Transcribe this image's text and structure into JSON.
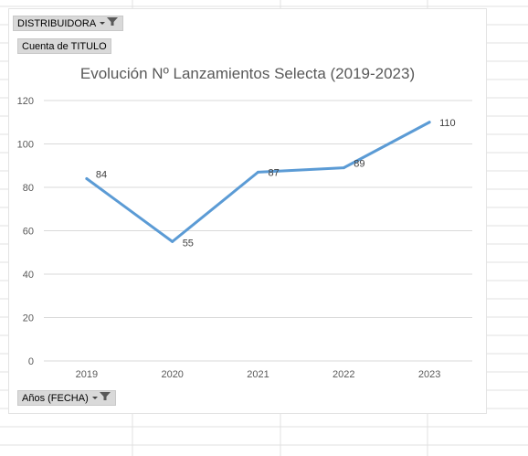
{
  "pivot": {
    "filter_field": "DISTRIBUIDORA",
    "value_field": "Cuenta de TITULO",
    "axis_field": "Años (FECHA)"
  },
  "colors": {
    "line": "#5b9bd5",
    "gridline": "#d9d9d9",
    "axis_text": "#595959",
    "field_button_bg": "#d9d9d9"
  },
  "icons": {
    "filter": "funnel-filter-icon",
    "dropdown": "dropdown-arrow-icon"
  },
  "chart_data": {
    "type": "line",
    "title": "Evolución Nº Lanzamientos Selecta (2019-2023)",
    "categories": [
      "2019",
      "2020",
      "2021",
      "2022",
      "2023"
    ],
    "series": [
      {
        "values": [
          84,
          55,
          87,
          89,
          110
        ]
      }
    ],
    "data_labels": [
      "84",
      "55",
      "87",
      "89",
      "110"
    ],
    "ylim": [
      0,
      120
    ],
    "yticks": [
      0,
      20,
      40,
      60,
      80,
      100,
      120
    ],
    "grid": true,
    "legend": "none"
  }
}
